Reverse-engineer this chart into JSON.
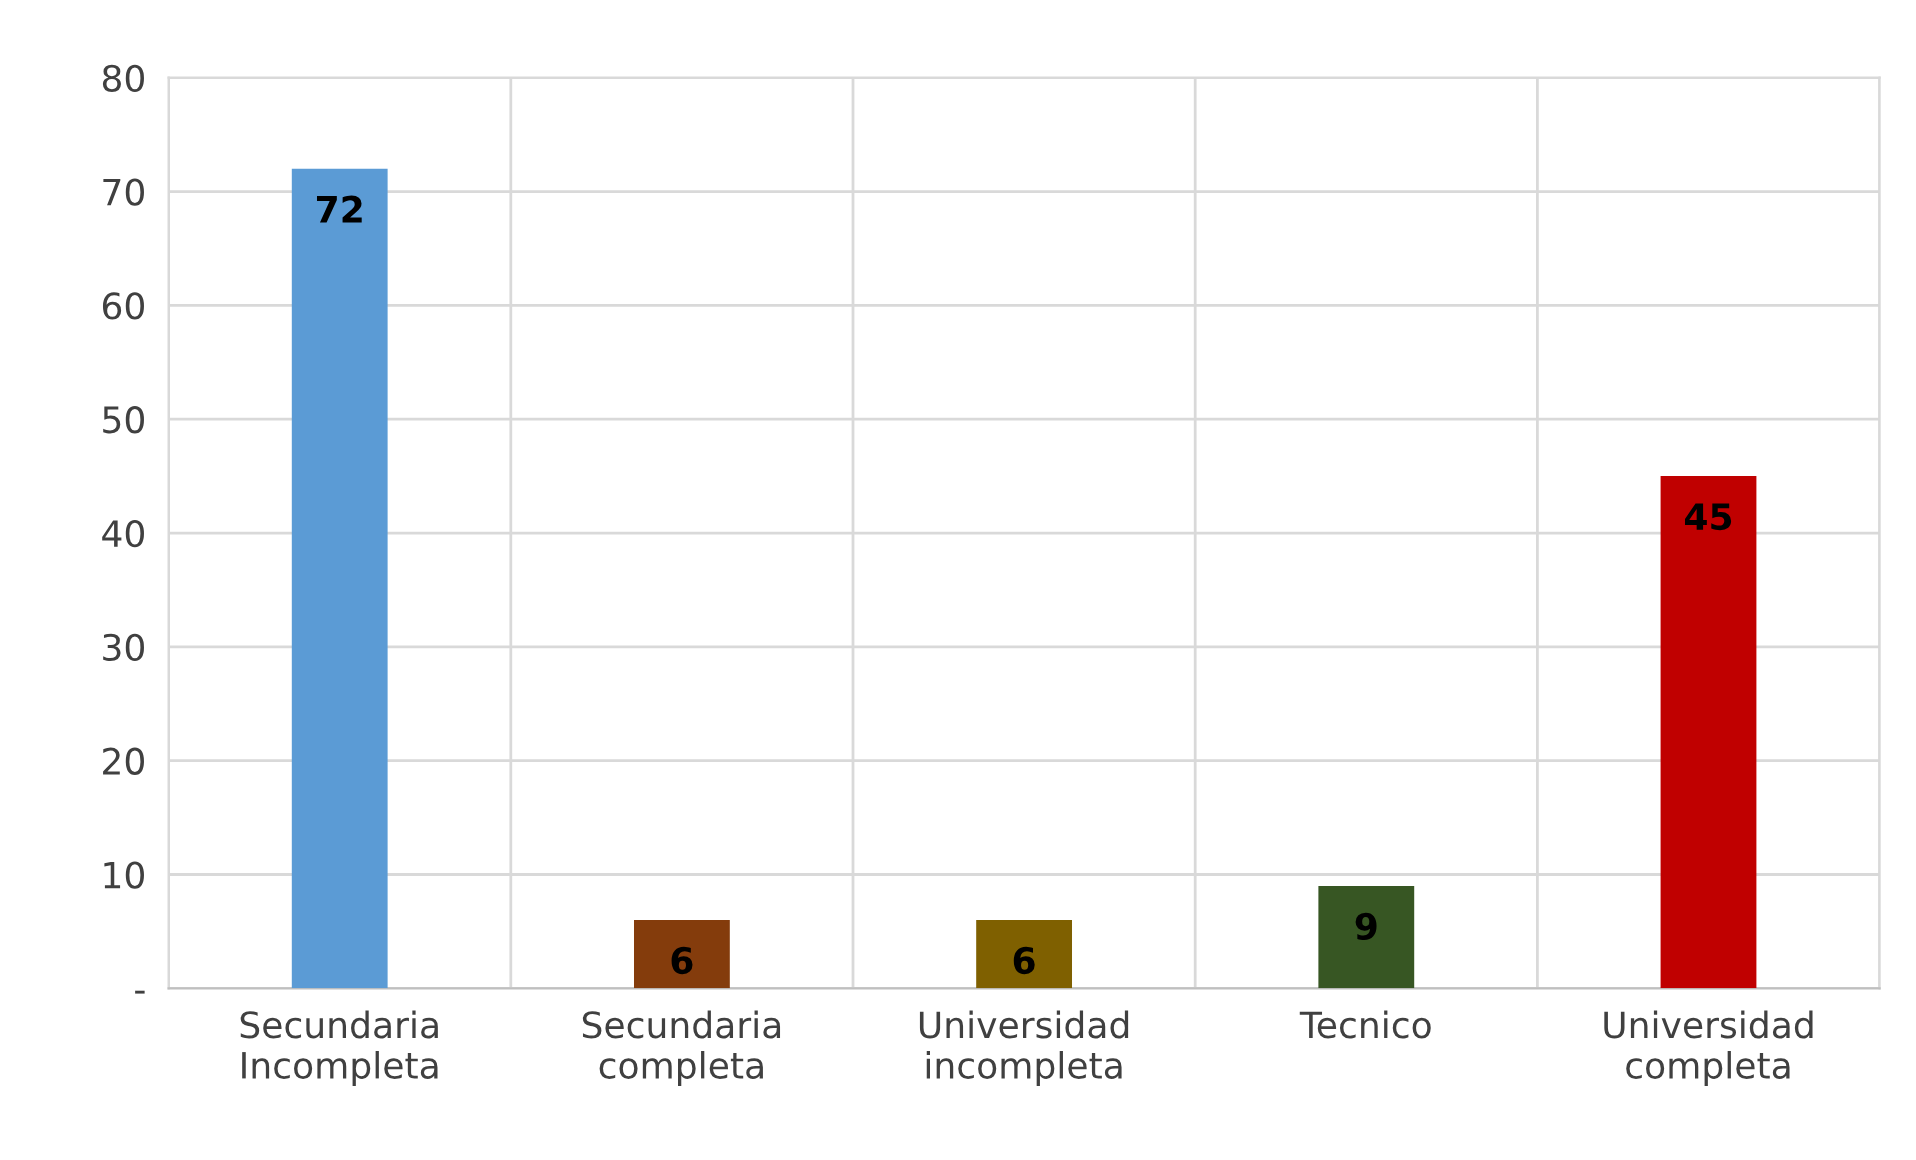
{
  "chart_data": {
    "type": "bar",
    "categories": [
      "Secundaria\nIncompleta",
      "Secundaria\ncompleta",
      "Universidad\nincompleta",
      "Tecnico",
      "Universidad\ncompleta"
    ],
    "values": [
      72,
      6,
      6,
      9,
      45
    ],
    "colors": [
      "#5b9bd5",
      "#843c0c",
      "#7f6000",
      "#375623",
      "#c00000"
    ],
    "ylim": [
      0,
      80
    ],
    "yticks": [
      {
        "value": 0,
        "label": "-"
      },
      10,
      20,
      30,
      40,
      50,
      60,
      70,
      80
    ],
    "grid": true,
    "data_labels": true
  }
}
